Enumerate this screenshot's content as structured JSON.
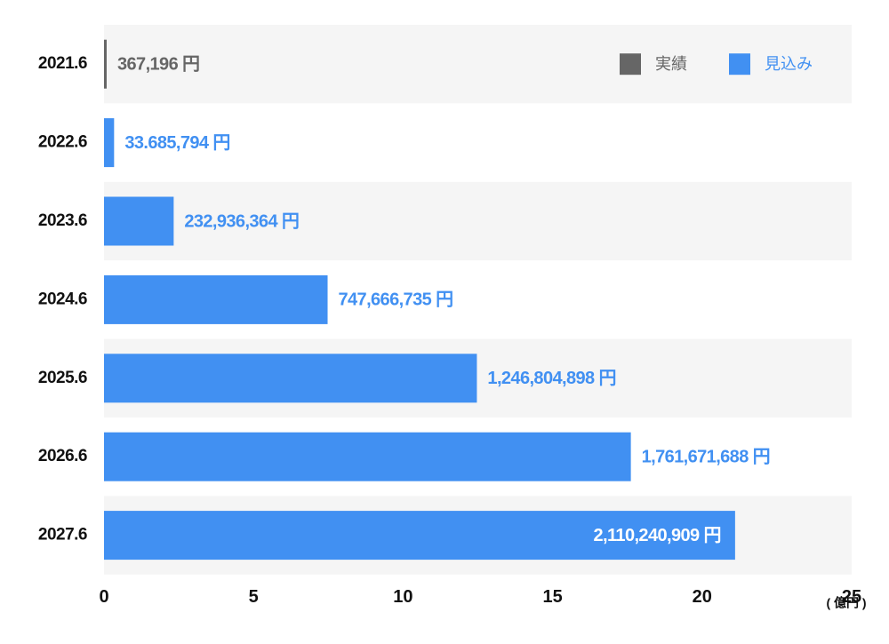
{
  "chart_data": {
    "type": "bar",
    "orientation": "horizontal",
    "categories": [
      "2021.6",
      "2022.6",
      "2023.6",
      "2024.6",
      "2025.6",
      "2026.6",
      "2027.6"
    ],
    "series": [
      {
        "name": "実績",
        "color": "#666666",
        "values": [
          0.00367196,
          null,
          null,
          null,
          null,
          null,
          null
        ],
        "value_labels": [
          "367,196 円",
          null,
          null,
          null,
          null,
          null,
          null
        ]
      },
      {
        "name": "見込み",
        "color": "#4190f2",
        "values": [
          null,
          0.33685794,
          2.32936364,
          7.47666735,
          12.46804898,
          17.61671688,
          21.10240909
        ],
        "value_labels": [
          null,
          "33.685,794 円",
          "232,936,364 円",
          "747,666,735 円",
          "1,246,804,898 円",
          "1,761,671,688 円",
          "2,110,240,909 円"
        ]
      }
    ],
    "xlim": [
      0,
      25
    ],
    "xticks": [
      0,
      5,
      10,
      15,
      20,
      25
    ],
    "x_unit_label": "( 億円 )",
    "legend": "top-right"
  }
}
